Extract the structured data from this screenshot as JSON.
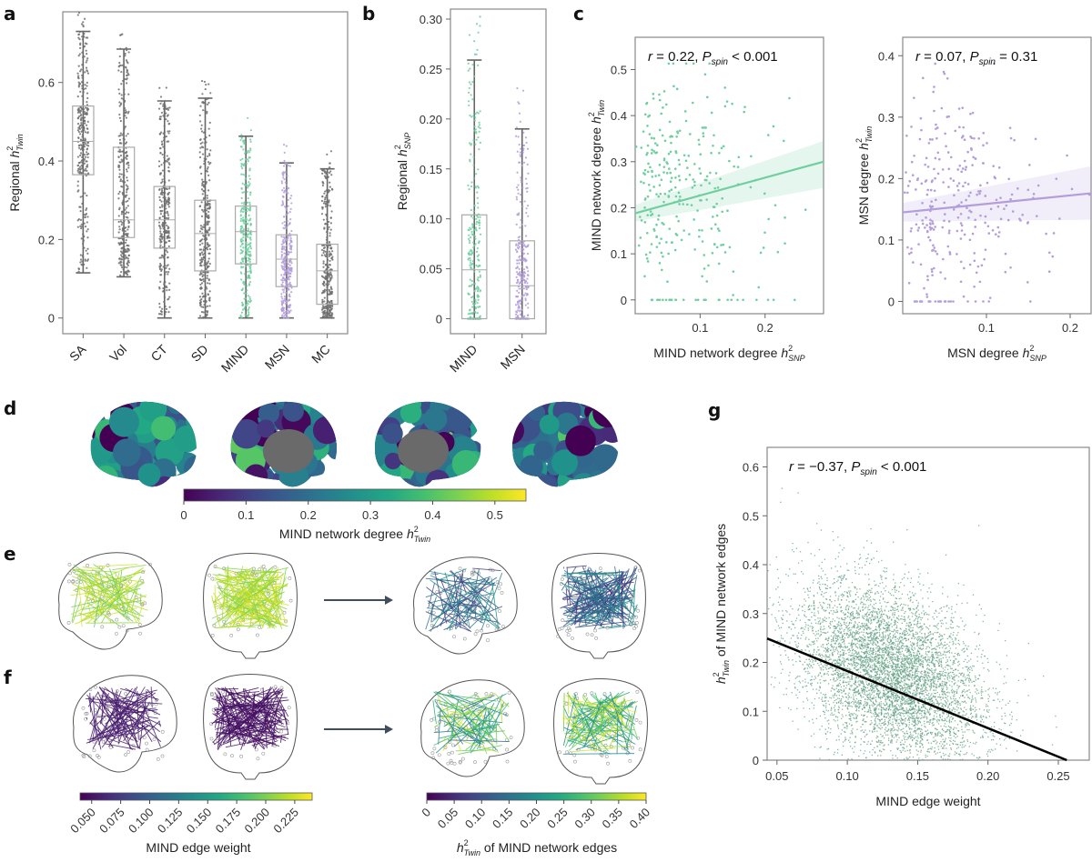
{
  "panels": {
    "a": "a",
    "b": "b",
    "c": "c",
    "d": "d",
    "e": "e",
    "f": "f",
    "g": "g"
  },
  "colors": {
    "gray": "#6e6e6e",
    "mind": "#6fcf9f",
    "msn": "#b39ddb",
    "g_points": "#5f9e80",
    "fit_g": "#000000",
    "frame": "#888888"
  },
  "chart_data": [
    {
      "id": "a",
      "type": "box",
      "title": "",
      "ylabel": "Regional h²Twin",
      "ylabel_main": "Regional ",
      "ylabel_sym": "h",
      "ylabel_sup": "2",
      "ylabel_sub": "Twin",
      "ylim": [
        -0.04,
        0.78
      ],
      "yticks": [
        0,
        0.2,
        0.4,
        0.6
      ],
      "ytick_labels": [
        "0",
        "0.2",
        "0.4",
        "0.6"
      ],
      "categories": [
        "SA",
        "Vol",
        "CT",
        "SD",
        "MIND",
        "MSN",
        "MC"
      ],
      "boxes": [
        {
          "name": "SA",
          "min": 0.115,
          "q1": 0.365,
          "median": 0.45,
          "q3": 0.54,
          "max": 0.73,
          "color": "gray"
        },
        {
          "name": "Vol",
          "min": 0.105,
          "q1": 0.205,
          "median": 0.25,
          "q3": 0.435,
          "max": 0.685,
          "color": "gray"
        },
        {
          "name": "CT",
          "min": 0.0,
          "q1": 0.178,
          "median": 0.25,
          "q3": 0.335,
          "max": 0.553,
          "color": "gray"
        },
        {
          "name": "SD",
          "min": 0.0,
          "q1": 0.12,
          "median": 0.215,
          "q3": 0.3,
          "max": 0.56,
          "color": "gray"
        },
        {
          "name": "MIND",
          "min": 0.0,
          "q1": 0.138,
          "median": 0.22,
          "q3": 0.285,
          "max": 0.463,
          "color": "mind"
        },
        {
          "name": "MSN",
          "min": 0.0,
          "q1": 0.08,
          "median": 0.15,
          "q3": 0.212,
          "max": 0.395,
          "color": "msn"
        },
        {
          "name": "MC",
          "min": 0.0,
          "q1": 0.035,
          "median": 0.12,
          "q3": 0.188,
          "max": 0.38,
          "color": "gray"
        }
      ]
    },
    {
      "id": "b",
      "type": "box",
      "ylabel": "Regional h²SNP",
      "ylabel_main": "Regional ",
      "ylabel_sym": "h",
      "ylabel_sup": "2",
      "ylabel_sub": "SNP",
      "ylim": [
        -0.015,
        0.31
      ],
      "yticks": [
        0,
        0.05,
        0.1,
        0.15,
        0.2,
        0.25,
        0.3
      ],
      "ytick_labels": [
        "0",
        "0.05",
        "0.10",
        "0.15",
        "0.20",
        "0.25",
        "0.30"
      ],
      "categories": [
        "MIND",
        "MSN"
      ],
      "boxes": [
        {
          "name": "MIND",
          "min": 0.0,
          "q1": 0.0,
          "median": 0.049,
          "q3": 0.104,
          "max": 0.259,
          "color": "mind"
        },
        {
          "name": "MSN",
          "min": 0.0,
          "q1": 0.0,
          "median": 0.033,
          "q3": 0.078,
          "max": 0.19,
          "color": "msn"
        }
      ]
    },
    {
      "id": "c1",
      "type": "scatter",
      "annotation": {
        "r": "r",
        "r_val": " = 0.22, ",
        "p": "P",
        "p_sub": "spin",
        "p_val": " < 0.001"
      },
      "xlabel_main": "MIND network degree ",
      "xlabel_sym": "h",
      "xlabel_sup": "2",
      "xlabel_sub": "SNP",
      "ylabel_main": "MIND network degree ",
      "ylabel_sym": "h",
      "ylabel_sup": "2",
      "ylabel_sub": "Twin",
      "xlim": [
        0.0,
        0.29
      ],
      "ylim": [
        -0.03,
        0.57
      ],
      "xticks": [
        0.1,
        0.2
      ],
      "xtick_labels": [
        "0.1",
        "0.2"
      ],
      "yticks": [
        0,
        0.1,
        0.2,
        0.3,
        0.4,
        0.5
      ],
      "ytick_labels": [
        "0",
        "0.1",
        "0.2",
        "0.3",
        "0.4",
        "0.5"
      ],
      "fit": {
        "x": [
          0.0,
          0.29
        ],
        "y": [
          0.188,
          0.3
        ],
        "ci_low_end": 0.243,
        "ci_high_end": 0.345,
        "ci_low_start": 0.17,
        "ci_high_start": 0.206
      },
      "point_color": "mind",
      "n_points": 300
    },
    {
      "id": "c2",
      "type": "scatter",
      "annotation": {
        "r": "r",
        "r_val": " = 0.07, ",
        "p": "P",
        "p_sub": "spin",
        "p_val": " = 0.31"
      },
      "xlabel_main": "MSN degree ",
      "xlabel_sym": "h",
      "xlabel_sup": "2",
      "xlabel_sub": "SNP",
      "ylabel_main": "MSN degree ",
      "ylabel_sym": "h",
      "ylabel_sup": "2",
      "ylabel_sub": "Twin",
      "xlim": [
        0.0,
        0.225
      ],
      "ylim": [
        -0.02,
        0.43
      ],
      "xticks": [
        0.1,
        0.2
      ],
      "xtick_labels": [
        "0.1",
        "0.2"
      ],
      "yticks": [
        0,
        0.1,
        0.2,
        0.3,
        0.4
      ],
      "ytick_labels": [
        "0",
        "0.1",
        "0.2",
        "0.3",
        "0.4"
      ],
      "fit": {
        "x": [
          0.0,
          0.225
        ],
        "y": [
          0.145,
          0.176
        ],
        "ci_low_end": 0.133,
        "ci_high_end": 0.22,
        "ci_low_start": 0.13,
        "ci_high_start": 0.16
      },
      "point_color": "msn",
      "n_points": 300
    },
    {
      "id": "d",
      "type": "colorbar",
      "label_main": "MIND network degree ",
      "label_sym": "h",
      "label_sup": "2",
      "label_sub": "Twin",
      "range": [
        0,
        0.55
      ],
      "ticks": [
        0,
        0.1,
        0.2,
        0.3,
        0.4,
        0.5
      ],
      "tick_labels": [
        "0",
        "0.1",
        "0.2",
        "0.3",
        "0.4",
        "0.5"
      ],
      "colormap": "viridis"
    },
    {
      "id": "f_left",
      "type": "colorbar",
      "label": "MIND edge weight",
      "range": [
        0.04,
        0.24
      ],
      "ticks": [
        0.05,
        0.075,
        0.1,
        0.125,
        0.15,
        0.175,
        0.2,
        0.225
      ],
      "tick_labels": [
        "0.050",
        "0.075",
        "0.100",
        "0.125",
        "0.150",
        "0.175",
        "0.200",
        "0.225"
      ],
      "colormap": "viridis"
    },
    {
      "id": "f_right",
      "type": "colorbar",
      "label_sym": "h",
      "label_sup": "2",
      "label_sub": "Twin",
      "label_rest": " of MIND network edges",
      "range": [
        0,
        0.4
      ],
      "ticks": [
        0,
        0.05,
        0.1,
        0.15,
        0.2,
        0.25,
        0.3,
        0.35,
        0.4
      ],
      "tick_labels": [
        "0",
        "0.05",
        "0.10",
        "0.15",
        "0.20",
        "0.25",
        "0.30",
        "0.35",
        "0.40"
      ],
      "colormap": "viridis"
    },
    {
      "id": "g",
      "type": "scatter",
      "annotation": {
        "r": "r",
        "r_val": " = −0.37, ",
        "p": "P",
        "p_sub": "spin",
        "p_val": " < 0.001"
      },
      "xlabel": "MIND edge weight",
      "ylabel_sym": "h",
      "ylabel_sup": "2",
      "ylabel_sub": "Twin",
      "ylabel_rest": " of MIND network edges",
      "xlim": [
        0.043,
        0.272
      ],
      "ylim": [
        0,
        0.64
      ],
      "xticks": [
        0.05,
        0.1,
        0.15,
        0.2,
        0.25
      ],
      "xtick_labels": [
        "0.05",
        "0.10",
        "0.15",
        "0.20",
        "0.25"
      ],
      "yticks": [
        0,
        0.1,
        0.2,
        0.3,
        0.4,
        0.5,
        0.6
      ],
      "ytick_labels": [
        "0",
        "0.1",
        "0.2",
        "0.3",
        "0.4",
        "0.5",
        "0.6"
      ],
      "fit": {
        "x": [
          0.043,
          0.256
        ],
        "y": [
          0.249,
          0.0
        ]
      },
      "point_color": "g_points",
      "density_center": [
        0.13,
        0.18
      ],
      "n_points": 6000
    }
  ]
}
